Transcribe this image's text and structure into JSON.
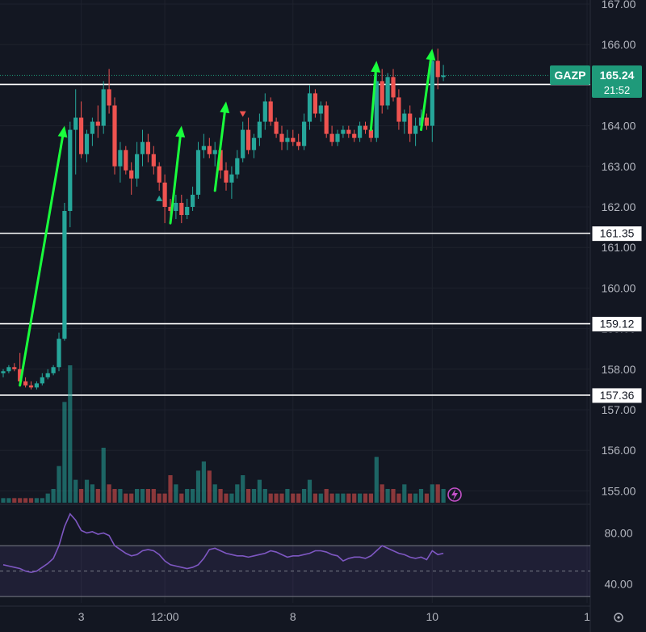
{
  "chart_data": [
    {
      "type": "candlestick",
      "ticker": "GAZP",
      "colors": {
        "up": "#26a69a",
        "down": "#ef5350",
        "background": "#131722",
        "grid": "#1e222d",
        "level": "#ffffff",
        "arrow": "#19ff3c",
        "badge": "#1f9a7a",
        "rsi": "#7e57c2"
      },
      "ylim": [
        154.8,
        167.0
      ],
      "y_ticks": [
        "167.00",
        "166.00",
        "165.00",
        "164.00",
        "163.00",
        "162.00",
        "161.00",
        "160.00",
        "159.00",
        "158.00",
        "157.00",
        "156.00",
        "155.00"
      ],
      "x_ticks": [
        "3",
        "12:00",
        "8",
        "10",
        "1"
      ],
      "last_price": {
        "value": "165.24",
        "countdown": "21:52"
      },
      "levels": [
        {
          "value": "165.02"
        },
        {
          "value": "161.35"
        },
        {
          "value": "159.12"
        },
        {
          "value": "157.36"
        }
      ],
      "candles_ohlc": [
        [
          157.9,
          158.0,
          157.8,
          157.95
        ],
        [
          157.95,
          158.1,
          157.9,
          158.05
        ],
        [
          158.05,
          158.15,
          157.95,
          158.0
        ],
        [
          158.0,
          158.4,
          157.6,
          157.7
        ],
        [
          157.7,
          157.8,
          157.55,
          157.6
        ],
        [
          157.6,
          157.7,
          157.5,
          157.55
        ],
        [
          157.55,
          157.7,
          157.5,
          157.65
        ],
        [
          157.65,
          157.9,
          157.6,
          157.8
        ],
        [
          157.8,
          158.0,
          157.75,
          157.9
        ],
        [
          157.9,
          158.1,
          157.85,
          158.05
        ],
        [
          158.05,
          158.9,
          157.95,
          158.75
        ],
        [
          158.75,
          162.1,
          158.7,
          161.9
        ],
        [
          161.9,
          164.1,
          161.5,
          163.9
        ],
        [
          163.9,
          164.9,
          162.8,
          164.2
        ],
        [
          164.2,
          164.6,
          163.2,
          163.3
        ],
        [
          163.3,
          163.9,
          163.1,
          163.8
        ],
        [
          163.8,
          164.2,
          163.5,
          164.1
        ],
        [
          164.1,
          164.5,
          163.7,
          164.0
        ],
        [
          164.0,
          165.1,
          163.8,
          164.9
        ],
        [
          164.9,
          165.4,
          164.3,
          164.5
        ],
        [
          164.5,
          164.7,
          162.8,
          163.0
        ],
        [
          163.0,
          163.6,
          162.6,
          163.4
        ],
        [
          163.4,
          163.5,
          162.8,
          162.9
        ],
        [
          162.9,
          163.1,
          162.3,
          162.7
        ],
        [
          162.7,
          163.6,
          162.5,
          163.3
        ],
        [
          163.3,
          163.9,
          163.0,
          163.6
        ],
        [
          163.6,
          163.8,
          163.1,
          163.3
        ],
        [
          163.3,
          163.5,
          162.8,
          163.0
        ],
        [
          163.0,
          163.1,
          162.4,
          162.6
        ],
        [
          162.6,
          162.8,
          161.6,
          162.0
        ],
        [
          162.0,
          162.2,
          161.7,
          161.9
        ],
        [
          161.9,
          162.3,
          161.7,
          162.1
        ],
        [
          162.1,
          162.3,
          161.6,
          161.8
        ],
        [
          161.8,
          162.2,
          161.7,
          162.0
        ],
        [
          162.0,
          162.5,
          161.9,
          162.3
        ],
        [
          162.3,
          163.6,
          162.2,
          163.4
        ],
        [
          163.4,
          163.8,
          163.2,
          163.5
        ],
        [
          163.5,
          163.7,
          163.2,
          163.3
        ],
        [
          163.3,
          163.6,
          163.0,
          163.4
        ],
        [
          163.4,
          163.5,
          162.7,
          162.9
        ],
        [
          162.9,
          163.1,
          162.4,
          162.6
        ],
        [
          162.6,
          163.0,
          162.2,
          162.8
        ],
        [
          162.8,
          163.4,
          162.7,
          163.2
        ],
        [
          163.2,
          164.1,
          163.1,
          163.9
        ],
        [
          163.9,
          164.2,
          163.3,
          163.4
        ],
        [
          163.4,
          163.8,
          163.2,
          163.7
        ],
        [
          163.7,
          164.3,
          163.5,
          164.1
        ],
        [
          164.1,
          164.8,
          163.9,
          164.6
        ],
        [
          164.6,
          164.7,
          164.0,
          164.1
        ],
        [
          164.1,
          164.2,
          163.7,
          163.8
        ],
        [
          163.8,
          164.0,
          163.4,
          163.6
        ],
        [
          163.6,
          163.9,
          163.4,
          163.7
        ],
        [
          163.7,
          163.9,
          163.5,
          163.6
        ],
        [
          163.6,
          163.8,
          163.4,
          163.5
        ],
        [
          163.5,
          164.3,
          163.4,
          164.1
        ],
        [
          164.1,
          165.0,
          163.9,
          164.8
        ],
        [
          164.8,
          164.9,
          164.2,
          164.3
        ],
        [
          164.3,
          164.6,
          164.1,
          164.5
        ],
        [
          164.5,
          164.6,
          163.7,
          163.8
        ],
        [
          163.8,
          164.0,
          163.5,
          163.6
        ],
        [
          163.6,
          163.9,
          163.5,
          163.8
        ],
        [
          163.8,
          164.0,
          163.7,
          163.9
        ],
        [
          163.9,
          164.0,
          163.7,
          163.8
        ],
        [
          163.8,
          163.9,
          163.6,
          163.7
        ],
        [
          163.7,
          164.1,
          163.6,
          164.0
        ],
        [
          164.0,
          164.1,
          163.8,
          163.9
        ],
        [
          163.9,
          164.0,
          163.6,
          163.7
        ],
        [
          163.7,
          165.3,
          163.6,
          165.1
        ],
        [
          165.1,
          165.4,
          164.3,
          164.5
        ],
        [
          164.5,
          165.3,
          164.4,
          165.2
        ],
        [
          165.2,
          165.4,
          164.6,
          164.7
        ],
        [
          164.7,
          164.9,
          163.9,
          164.1
        ],
        [
          164.1,
          164.4,
          163.8,
          164.3
        ],
        [
          164.3,
          164.5,
          163.6,
          163.8
        ],
        [
          163.8,
          164.2,
          163.5,
          164.0
        ],
        [
          164.0,
          164.4,
          163.9,
          164.2
        ],
        [
          164.2,
          164.3,
          163.9,
          164.0
        ],
        [
          164.0,
          165.8,
          163.6,
          165.6
        ],
        [
          165.6,
          165.9,
          164.9,
          165.2
        ],
        [
          165.2,
          165.5,
          165.1,
          165.24
        ]
      ],
      "volume": [
        1,
        1,
        1,
        1,
        1,
        1,
        1,
        1,
        2,
        3,
        8,
        22,
        30,
        5,
        3,
        5,
        4,
        3,
        12,
        4,
        3,
        3,
        2,
        2,
        3,
        3,
        3,
        3,
        2,
        2,
        6,
        4,
        2,
        3,
        3,
        7,
        9,
        7,
        4,
        3,
        2,
        2,
        4,
        6,
        3,
        3,
        5,
        3,
        2,
        2,
        2,
        3,
        2,
        2,
        3,
        5,
        2,
        2,
        3,
        2,
        2,
        2,
        2,
        2,
        2,
        2,
        2,
        10,
        4,
        3,
        3,
        2,
        4,
        2,
        2,
        3,
        2,
        4,
        4,
        3
      ],
      "arrows": [
        {
          "from": [
            3,
            157.6
          ],
          "to": [
            11,
            164.0
          ]
        },
        {
          "from": [
            30,
            161.6
          ],
          "to": [
            32,
            164.0
          ]
        },
        {
          "from": [
            38,
            162.4
          ],
          "to": [
            40,
            164.6
          ]
        },
        {
          "from": [
            66,
            163.9
          ],
          "to": [
            67,
            165.6
          ]
        },
        {
          "from": [
            75,
            163.9
          ],
          "to": [
            77,
            165.9
          ]
        }
      ],
      "signals": [
        {
          "type": "buy",
          "index": 28
        },
        {
          "type": "sell",
          "index": 43
        }
      ]
    },
    {
      "type": "line",
      "indicator": "RSI",
      "ylim": [
        25,
        100
      ],
      "y_ticks": [
        "80.00",
        "40.00"
      ],
      "band": [
        30,
        70
      ],
      "midline": 50,
      "values": [
        55,
        54,
        53,
        52,
        50,
        49,
        50,
        53,
        56,
        60,
        70,
        85,
        95,
        90,
        82,
        80,
        81,
        79,
        80,
        78,
        70,
        67,
        64,
        62,
        63,
        66,
        67,
        66,
        63,
        58,
        55,
        54,
        53,
        52,
        53,
        55,
        60,
        67,
        68,
        66,
        64,
        63,
        62,
        62,
        61,
        62,
        63,
        64,
        66,
        65,
        63,
        61,
        62,
        62,
        63,
        64,
        66,
        66,
        65,
        63,
        62,
        58,
        60,
        61,
        61,
        60,
        62,
        66,
        70,
        68,
        66,
        64,
        63,
        61,
        60,
        61,
        59,
        66,
        63,
        64
      ]
    }
  ]
}
